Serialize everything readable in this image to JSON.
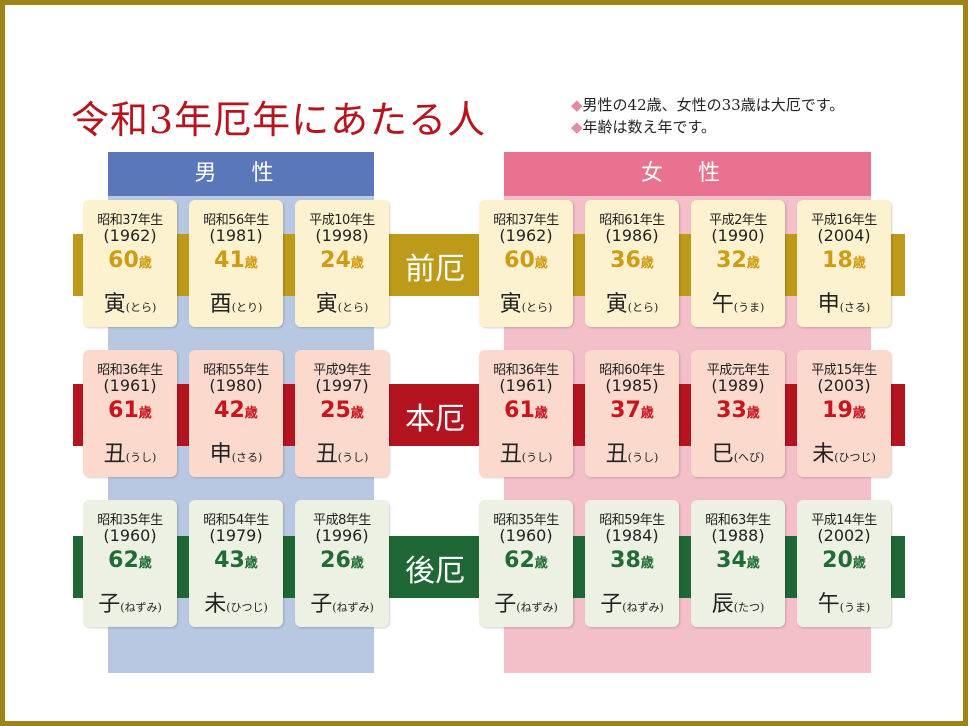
{
  "title": "令和3年厄年にあたる人",
  "notes": [
    "男性の42歳、女性の33歳は大厄です。",
    "年齢は数え年です。"
  ],
  "columns": {
    "male": "男 性",
    "female": "女 性"
  },
  "colors": {
    "frame": "#9c8418",
    "title": "#b8141e",
    "male_head": "#5a77b9",
    "female_head": "#e8728f",
    "zenyaku_band": "#bd9a1a",
    "honyaku_band": "#b4141f",
    "atoyaku_band": "#1f6836"
  },
  "rows": [
    {
      "label": "前厄",
      "male": [
        {
          "era": "昭和37年生",
          "year": "(1962)",
          "age": "60",
          "age_unit": "歳",
          "zodiac": "寅",
          "reading": "(とら)"
        },
        {
          "era": "昭和56年生",
          "year": "(1981)",
          "age": "41",
          "age_unit": "歳",
          "zodiac": "酉",
          "reading": "(とり)"
        },
        {
          "era": "平成10年生",
          "year": "(1998)",
          "age": "24",
          "age_unit": "歳",
          "zodiac": "寅",
          "reading": "(とら)"
        }
      ],
      "female": [
        {
          "era": "昭和37年生",
          "year": "(1962)",
          "age": "60",
          "age_unit": "歳",
          "zodiac": "寅",
          "reading": "(とら)"
        },
        {
          "era": "昭和61年生",
          "year": "(1986)",
          "age": "36",
          "age_unit": "歳",
          "zodiac": "寅",
          "reading": "(とら)"
        },
        {
          "era": "平成2年生",
          "year": "(1990)",
          "age": "32",
          "age_unit": "歳",
          "zodiac": "午",
          "reading": "(うま)"
        },
        {
          "era": "平成16年生",
          "year": "(2004)",
          "age": "18",
          "age_unit": "歳",
          "zodiac": "申",
          "reading": "(さる)"
        }
      ]
    },
    {
      "label": "本厄",
      "male": [
        {
          "era": "昭和36年生",
          "year": "(1961)",
          "age": "61",
          "age_unit": "歳",
          "zodiac": "丑",
          "reading": "(うし)"
        },
        {
          "era": "昭和55年生",
          "year": "(1980)",
          "age": "42",
          "age_unit": "歳",
          "zodiac": "申",
          "reading": "(さる)"
        },
        {
          "era": "平成9年生",
          "year": "(1997)",
          "age": "25",
          "age_unit": "歳",
          "zodiac": "丑",
          "reading": "(うし)"
        }
      ],
      "female": [
        {
          "era": "昭和36年生",
          "year": "(1961)",
          "age": "61",
          "age_unit": "歳",
          "zodiac": "丑",
          "reading": "(うし)"
        },
        {
          "era": "昭和60年生",
          "year": "(1985)",
          "age": "37",
          "age_unit": "歳",
          "zodiac": "丑",
          "reading": "(うし)"
        },
        {
          "era": "平成元年生",
          "year": "(1989)",
          "age": "33",
          "age_unit": "歳",
          "zodiac": "巳",
          "reading": "(へび)"
        },
        {
          "era": "平成15年生",
          "year": "(2003)",
          "age": "19",
          "age_unit": "歳",
          "zodiac": "未",
          "reading": "(ひつじ)"
        }
      ]
    },
    {
      "label": "後厄",
      "male": [
        {
          "era": "昭和35年生",
          "year": "(1960)",
          "age": "62",
          "age_unit": "歳",
          "zodiac": "子",
          "reading": "(ねずみ)"
        },
        {
          "era": "昭和54年生",
          "year": "(1979)",
          "age": "43",
          "age_unit": "歳",
          "zodiac": "未",
          "reading": "(ひつじ)"
        },
        {
          "era": "平成8年生",
          "year": "(1996)",
          "age": "26",
          "age_unit": "歳",
          "zodiac": "子",
          "reading": "(ねずみ)"
        }
      ],
      "female": [
        {
          "era": "昭和35年生",
          "year": "(1960)",
          "age": "62",
          "age_unit": "歳",
          "zodiac": "子",
          "reading": "(ねずみ)"
        },
        {
          "era": "昭和59年生",
          "year": "(1984)",
          "age": "38",
          "age_unit": "歳",
          "zodiac": "子",
          "reading": "(ねずみ)"
        },
        {
          "era": "昭和63年生",
          "year": "(1988)",
          "age": "34",
          "age_unit": "歳",
          "zodiac": "辰",
          "reading": "(たつ)"
        },
        {
          "era": "平成14年生",
          "year": "(2002)",
          "age": "20",
          "age_unit": "歳",
          "zodiac": "午",
          "reading": "(うま)"
        }
      ]
    }
  ]
}
